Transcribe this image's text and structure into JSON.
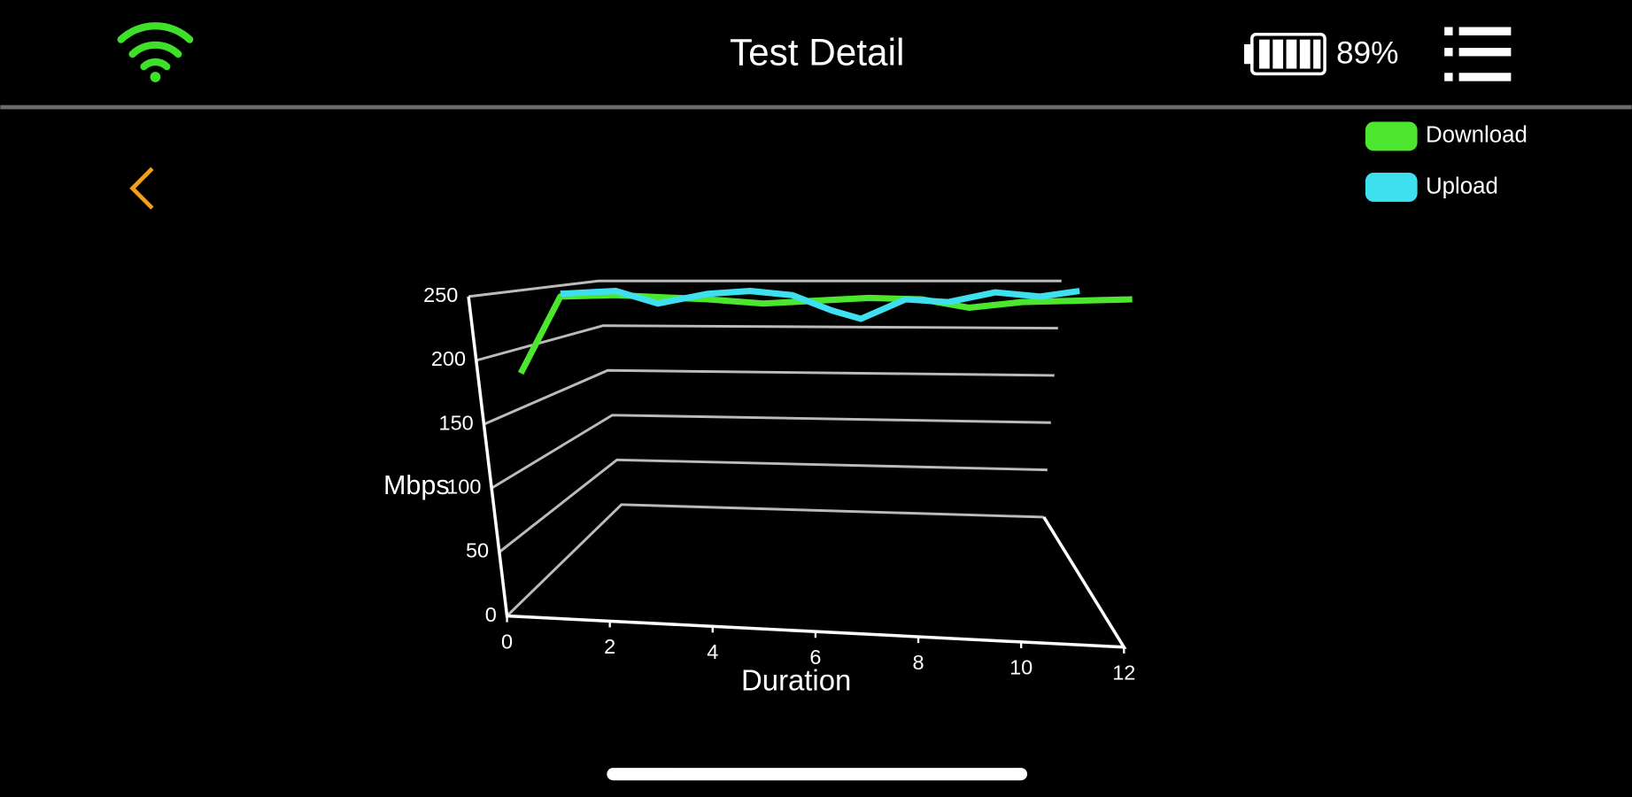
{
  "header": {
    "title": "Test Detail",
    "battery": "89%"
  },
  "chart_data": {
    "type": "line",
    "x_label": "Duration",
    "y_label": "Mbps",
    "xlim": [
      0,
      12
    ],
    "ylim": [
      0,
      250
    ],
    "xticks": [
      0,
      2,
      4,
      6,
      8,
      10,
      12
    ],
    "yticks": [
      0,
      50,
      100,
      150,
      200,
      250
    ],
    "grid": true,
    "legend": "top-right",
    "series": [
      {
        "name": "Download",
        "color": "#4ce62f",
        "x": [
          0.4,
          1.15,
          2.2,
          3.95,
          5,
          6,
          7,
          8,
          8.9,
          9.9,
          12
        ],
        "values": [
          195,
          250,
          251,
          248,
          245,
          247,
          249,
          248,
          242,
          246,
          248
        ]
      },
      {
        "name": "Upload",
        "color": "#3ee0f0",
        "x": [
          1.15,
          2.2,
          3,
          3.95,
          4.75,
          5.55,
          6.3,
          6.85,
          7.7,
          8.5,
          9.4,
          10.25,
          11
        ],
        "values": [
          252,
          254,
          245,
          252,
          254,
          251,
          240,
          234,
          248,
          246,
          253,
          250,
          254
        ]
      }
    ]
  }
}
